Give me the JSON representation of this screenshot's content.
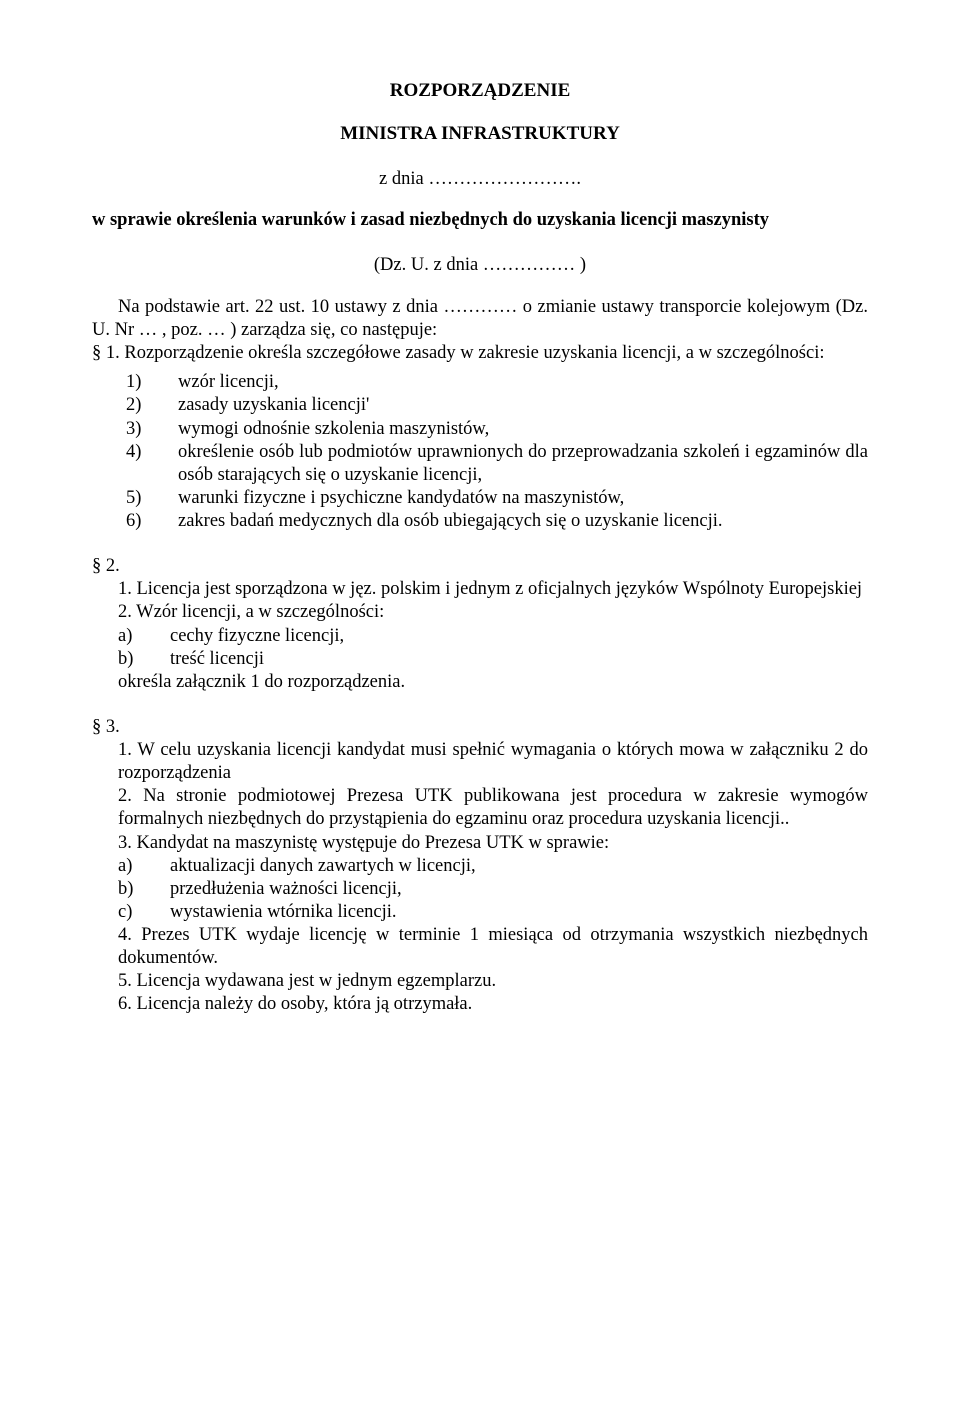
{
  "header": {
    "line1": "ROZPORZĄDZENIE",
    "line2": "MINISTRA INFRASTRUKTURY",
    "date_line": "z dnia ……………………."
  },
  "subject": "w sprawie określenia warunków i zasad niezbędnych do uzyskania licencji maszynisty",
  "dz": "(Dz. U. z dnia …………… )",
  "basis": "Na podstawie art. 22 ust. 10 ustawy z dnia ………… o zmianie ustawy transporcie kolejowym (Dz. U. Nr … , poz. … ) zarządza się, co następuje:",
  "s1": {
    "intro": "§ 1. Rozporządzenie określa szczegółowe zasady w zakresie uzyskania licencji, a w szczególności:",
    "items": [
      "wzór licencji,",
      "zasady uzyskania licencji'",
      "wymogi odnośnie szkolenia maszynistów,",
      "określenie osób lub podmiotów uprawnionych do przeprowadzania szkoleń i egzaminów dla osób starających się o uzyskanie licencji,",
      "warunki fizyczne i psychiczne kandydatów na maszynistów,",
      "zakres badań medycznych dla osób ubiegających się o uzyskanie licencji."
    ]
  },
  "s2": {
    "marker": "§ 2.",
    "p1": "1. Licencja jest sporządzona w jęz. polskim i jednym z oficjalnych języków Wspólnoty Europejskiej",
    "p2": "2. Wzór licencji, a w szczególności:",
    "a": "cechy fizyczne licencji,",
    "b": "treść licencji",
    "tail": "określa załącznik 1 do rozporządzenia."
  },
  "s3": {
    "marker": "§ 3.",
    "p1": "1. W celu uzyskania licencji kandydat musi spełnić wymagania o których mowa w załączniku 2 do rozporządzenia",
    "p2": "2. Na stronie podmiotowej Prezesa UTK publikowana jest procedura w zakresie wymogów formalnych niezbędnych do przystąpienia do egzaminu oraz procedura uzyskania licencji..",
    "p3": "3. Kandydat na maszynistę występuje do Prezesa UTK w sprawie:",
    "a": "aktualizacji danych zawartych w licencji,",
    "b": "przedłużenia ważności licencji,",
    "c": "wystawienia wtórnika licencji.",
    "p4": "4. Prezes UTK wydaje licencję w terminie 1 miesiąca od otrzymania wszystkich niezbędnych dokumentów.",
    "p5": "5. Licencja wydawana jest w jednym egzemplarzu.",
    "p6": "6. Licencja należy do osoby, która ją otrzymała."
  },
  "labels": {
    "n1": "1)",
    "n2": "2)",
    "n3": "3)",
    "n4": "4)",
    "n5": "5)",
    "n6": "6)",
    "a": "a)",
    "b": "b)",
    "c": "c)"
  }
}
